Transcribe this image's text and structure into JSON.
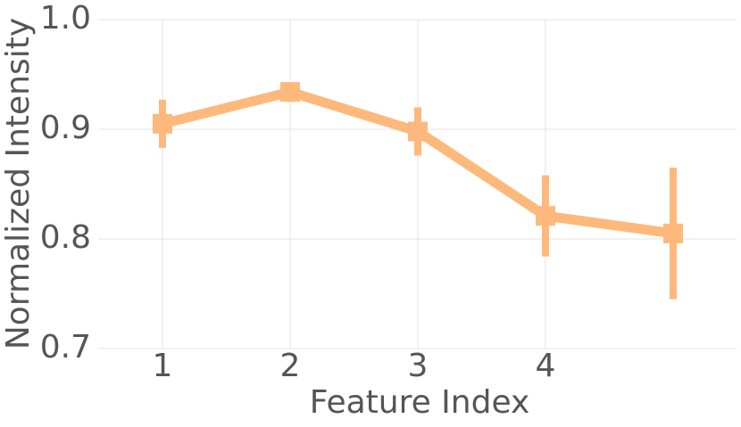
{
  "chart_data": {
    "type": "line",
    "x_label": "Feature Index",
    "y_label": "Normalized Intensity",
    "x": [
      1,
      2,
      3,
      4,
      5
    ],
    "series": [
      {
        "color": "#fdb97b",
        "values": [
          0.905,
          0.934,
          0.898,
          0.821,
          0.805
        ],
        "errors": [
          0.022,
          0.009,
          0.022,
          0.037,
          0.06
        ]
      }
    ],
    "xlim": [
      0.5,
      5.5
    ],
    "xticks": [
      1,
      2,
      3,
      4
    ],
    "ylim": [
      0.7,
      1.0
    ],
    "yticks": [
      0.7,
      0.8,
      0.9,
      {
        "value": 1.0,
        "label": "1.0"
      }
    ],
    "grid": true
  }
}
